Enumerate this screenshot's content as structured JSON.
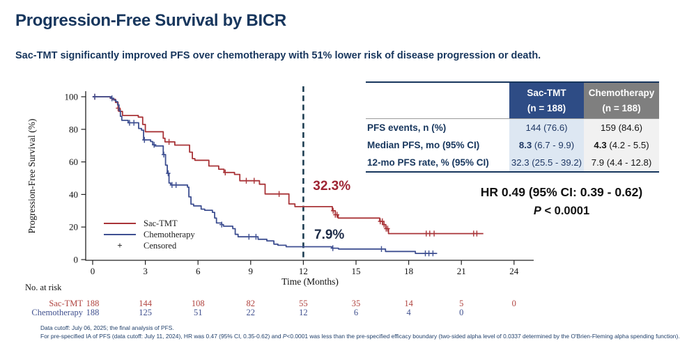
{
  "slide": {
    "title": "Progression-Free Survival by BICR",
    "subtitle": "Sac-TMT significantly improved PFS over chemotherapy with 51% lower risk of disease progression or death.",
    "footnote1": "Data cutoff: July 06, 2025; the final analysis of PFS.",
    "footnote2_pre": "For pre-specified IA of PFS (data cutoff: July 11, 2024), HR was 0.47 (95% CI, 0.35-0.62) and ",
    "footnote2_p": "P",
    "footnote2_post": "<0.0001 was less than the pre-specified efficacy boundary (two-sided alpha level of 0.0337 determined by the O'Brien-Fleming alpha spending function)."
  },
  "stats": {
    "hr_text": "HR 0.49 (95% CI: 0.39 - 0.62)",
    "p_label": "P",
    "p_rest": " < 0.0001"
  },
  "table": {
    "header": {
      "sac_line1": "Sac-TMT",
      "sac_line2": "(n = 188)",
      "chemo_line1": "Chemotherapy",
      "chemo_line2": "(n = 188)"
    },
    "rows": [
      {
        "label": "PFS events, n (%)",
        "sac_bold": "",
        "sac": "144 (76.6)",
        "chemo_bold": "",
        "chemo": "159 (84.6)"
      },
      {
        "label": "Median PFS, mo (95% CI)",
        "sac_bold": "8.3",
        "sac": " (6.7 - 9.9)",
        "chemo_bold": "4.3",
        "chemo": " (4.2 - 5.5)"
      },
      {
        "label": "12-mo PFS rate, % (95% CI)",
        "sac_bold": "",
        "sac": "32.3 (25.5 - 39.2)",
        "chemo_bold": "",
        "chemo": "7.9 (4.4 - 12.8)"
      }
    ],
    "colors": {
      "sac_header_bg": "#2e4c85",
      "chemo_header_bg": "#7f7f7f",
      "sac_col_bg": "#dde7f2",
      "chemo_col_bg": "#f1f1f1",
      "sac_text": "#1f3864",
      "chemo_text": "#141414"
    }
  },
  "risk_table": {
    "label": "No. at risk",
    "rows": [
      {
        "name": "Sac-TMT",
        "color": "#b04440",
        "values": [
          [
            0,
            188
          ],
          [
            3,
            144
          ],
          [
            6,
            108
          ],
          [
            9,
            82
          ],
          [
            12,
            55
          ],
          [
            15,
            35
          ],
          [
            18,
            14
          ],
          [
            21,
            5
          ],
          [
            24,
            0
          ]
        ]
      },
      {
        "name": "Chemotherapy",
        "color": "#41518f",
        "values": [
          [
            0,
            188
          ],
          [
            3,
            125
          ],
          [
            6,
            51
          ],
          [
            9,
            22
          ],
          [
            12,
            12
          ],
          [
            15,
            6
          ],
          [
            18,
            4
          ],
          [
            21,
            0
          ]
        ]
      }
    ]
  },
  "chart_data": {
    "type": "line",
    "subtype": "kaplan-meier-step",
    "title": "",
    "xlabel": "Time (Months)",
    "ylabel": "Progression-Free Survival (%)",
    "xlim": [
      0,
      24
    ],
    "ylim": [
      0,
      100
    ],
    "x_ticks": [
      0,
      3,
      6,
      9,
      12,
      15,
      18,
      21,
      24
    ],
    "y_ticks": [
      0,
      20,
      40,
      60,
      80,
      100
    ],
    "grid": false,
    "legend_position": "inside-lower-left",
    "reference_line": {
      "x": 12,
      "style": "dashed",
      "color": "#1d3d52"
    },
    "annotations": [
      {
        "text": "32.3%",
        "series": "Sac-TMT",
        "color": "#9e2433",
        "x": 12.55,
        "y": 49.6
      },
      {
        "text": "7.9%",
        "series": "Chemotherapy",
        "color": "#1c2b47",
        "x": 12.62,
        "y": 19.8
      }
    ],
    "legend": [
      {
        "label": "Sac-TMT",
        "color": "#a93438",
        "marker": ""
      },
      {
        "label": "Chemotherapy",
        "color": "#3e4f91",
        "marker": ""
      },
      {
        "label": "Censored",
        "color": "#222222",
        "marker": "+"
      }
    ],
    "series": [
      {
        "name": "Sac-TMT",
        "color": "#a93438",
        "steps": [
          [
            0,
            100
          ],
          [
            0.9,
            100
          ],
          [
            1.0,
            99
          ],
          [
            1.15,
            98.4
          ],
          [
            1.3,
            96.5
          ],
          [
            1.45,
            93
          ],
          [
            1.55,
            91
          ],
          [
            1.7,
            88.5
          ],
          [
            2.55,
            88.5
          ],
          [
            2.6,
            87.5
          ],
          [
            2.75,
            87.5
          ],
          [
            2.85,
            83
          ],
          [
            3.0,
            78.5
          ],
          [
            3.95,
            78.5
          ],
          [
            4.02,
            74.5
          ],
          [
            4.12,
            72.3
          ],
          [
            4.6,
            72.3
          ],
          [
            4.68,
            70.3
          ],
          [
            5.45,
            70.3
          ],
          [
            5.52,
            66
          ],
          [
            5.68,
            62
          ],
          [
            5.82,
            61
          ],
          [
            6.55,
            61
          ],
          [
            6.62,
            57.5
          ],
          [
            7.1,
            57.5
          ],
          [
            7.18,
            55.5
          ],
          [
            7.4,
            55.5
          ],
          [
            7.48,
            53.5
          ],
          [
            8.0,
            53.5
          ],
          [
            8.08,
            52.3
          ],
          [
            8.3,
            52.3
          ],
          [
            8.38,
            48.4
          ],
          [
            9.42,
            48.4
          ],
          [
            9.5,
            46.3
          ],
          [
            9.75,
            46.3
          ],
          [
            9.82,
            40.3
          ],
          [
            11.1,
            40.3
          ],
          [
            11.18,
            34.2
          ],
          [
            11.45,
            34.2
          ],
          [
            11.52,
            32.5
          ],
          [
            13.55,
            32.5
          ],
          [
            13.65,
            30
          ],
          [
            13.82,
            27.5
          ],
          [
            13.98,
            25.5
          ],
          [
            16.25,
            25.5
          ],
          [
            16.35,
            23.5
          ],
          [
            16.52,
            21.5
          ],
          [
            16.7,
            19
          ],
          [
            16.85,
            16
          ],
          [
            22.25,
            16
          ]
        ],
        "censor_months": [
          0.12,
          1.45,
          1.58,
          4.35,
          7.55,
          8.75,
          9.2,
          10.62,
          13.7,
          13.82,
          13.92,
          16.38,
          16.5,
          16.6,
          16.72,
          16.8,
          19.0,
          19.2,
          19.45,
          21.7,
          21.88
        ]
      },
      {
        "name": "Chemotherapy",
        "color": "#3e4f91",
        "steps": [
          [
            0,
            100
          ],
          [
            0.95,
            100
          ],
          [
            1.05,
            99
          ],
          [
            1.2,
            98
          ],
          [
            1.32,
            97
          ],
          [
            1.42,
            95
          ],
          [
            1.5,
            91.5
          ],
          [
            1.58,
            88
          ],
          [
            1.66,
            85.5
          ],
          [
            1.95,
            85.5
          ],
          [
            2.02,
            84
          ],
          [
            2.55,
            84
          ],
          [
            2.62,
            80.5
          ],
          [
            2.78,
            79.5
          ],
          [
            2.9,
            73.5
          ],
          [
            3.22,
            73.5
          ],
          [
            3.3,
            72.5
          ],
          [
            3.42,
            70.5
          ],
          [
            3.55,
            69.8
          ],
          [
            3.95,
            69.8
          ],
          [
            4.02,
            64.5
          ],
          [
            4.15,
            58
          ],
          [
            4.25,
            53
          ],
          [
            4.35,
            47
          ],
          [
            4.45,
            45.8
          ],
          [
            5.3,
            45.8
          ],
          [
            5.4,
            44.5
          ],
          [
            5.48,
            38.5
          ],
          [
            5.6,
            34
          ],
          [
            5.75,
            33
          ],
          [
            6.1,
            33
          ],
          [
            6.18,
            31
          ],
          [
            6.38,
            30.3
          ],
          [
            6.75,
            30.3
          ],
          [
            6.82,
            29
          ],
          [
            6.95,
            25.5
          ],
          [
            7.05,
            22.5
          ],
          [
            7.35,
            21.5
          ],
          [
            7.45,
            20.5
          ],
          [
            7.9,
            20.5
          ],
          [
            7.98,
            19
          ],
          [
            8.12,
            15.5
          ],
          [
            8.28,
            14
          ],
          [
            9.35,
            14
          ],
          [
            9.42,
            12.5
          ],
          [
            9.85,
            12.5
          ],
          [
            9.92,
            11.5
          ],
          [
            10.25,
            11.5
          ],
          [
            10.32,
            9.5
          ],
          [
            10.55,
            8.8
          ],
          [
            10.95,
            8.8
          ],
          [
            11.02,
            7.9
          ],
          [
            13.55,
            7.9
          ],
          [
            13.62,
            7
          ],
          [
            14.0,
            6.5
          ],
          [
            16.58,
            6.5
          ],
          [
            16.68,
            5
          ],
          [
            18.3,
            5
          ],
          [
            18.38,
            3.8
          ],
          [
            19.62,
            3.8
          ]
        ],
        "censor_months": [
          0.12,
          1.1,
          2.1,
          2.35,
          2.95,
          3.5,
          4.05,
          4.3,
          4.52,
          4.75,
          7.35,
          8.9,
          9.3,
          13.68,
          16.45,
          18.95,
          19.15,
          19.38
        ]
      }
    ]
  },
  "colors": {
    "title": "#17365d",
    "footnote": "#21406b",
    "axis": "#222222"
  }
}
